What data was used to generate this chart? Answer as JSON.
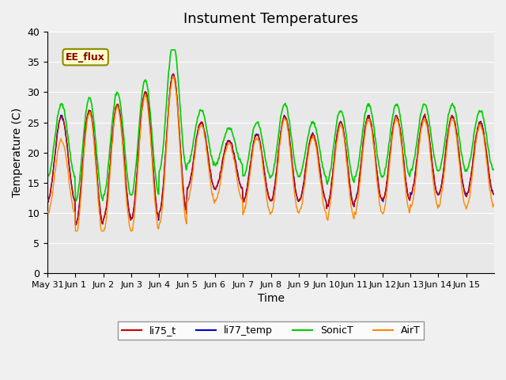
{
  "title": "Instument Temperatures",
  "xlabel": "Time",
  "ylabel": "Temperature (C)",
  "ylim": [
    0,
    40
  ],
  "n_days": 16,
  "xtick_positions": [
    0,
    1,
    2,
    3,
    4,
    5,
    6,
    7,
    8,
    9,
    10,
    11,
    12,
    13,
    14,
    15
  ],
  "xtick_labels": [
    "May 31",
    "Jun 1",
    "Jun 2",
    "Jun 3",
    "Jun 4",
    "Jun 5",
    "Jun 6",
    "Jun 7",
    "Jun 8",
    "Jun 9",
    "Jun 10",
    "Jun 11",
    "Jun 12",
    "Jun 13",
    "Jun 14",
    "Jun 15"
  ],
  "ytick_values": [
    0,
    5,
    10,
    15,
    20,
    25,
    30,
    35,
    40
  ],
  "annotation_text": "EE_flux",
  "colors": {
    "li75_t": "#cc0000",
    "li77_temp": "#0000cc",
    "SonicT": "#00cc00",
    "AirT": "#ff8800"
  },
  "plot_bg_color": "#e8e8e8",
  "fig_bg_color": "#f0f0f0",
  "title_fontsize": 13,
  "axis_label_fontsize": 10,
  "day_mins_base": [
    12,
    8,
    9,
    9,
    10,
    14,
    14,
    12,
    12,
    12,
    11,
    12,
    12,
    13,
    13,
    13
  ],
  "day_maxs_base": [
    26,
    27,
    28,
    30,
    33,
    25,
    22,
    23,
    26,
    23,
    25,
    26,
    26,
    26,
    26,
    25
  ],
  "sonic_extra_spike": [
    0,
    0,
    0,
    0,
    3,
    0,
    0,
    0,
    0,
    0,
    0,
    0,
    0,
    0,
    0,
    0
  ]
}
